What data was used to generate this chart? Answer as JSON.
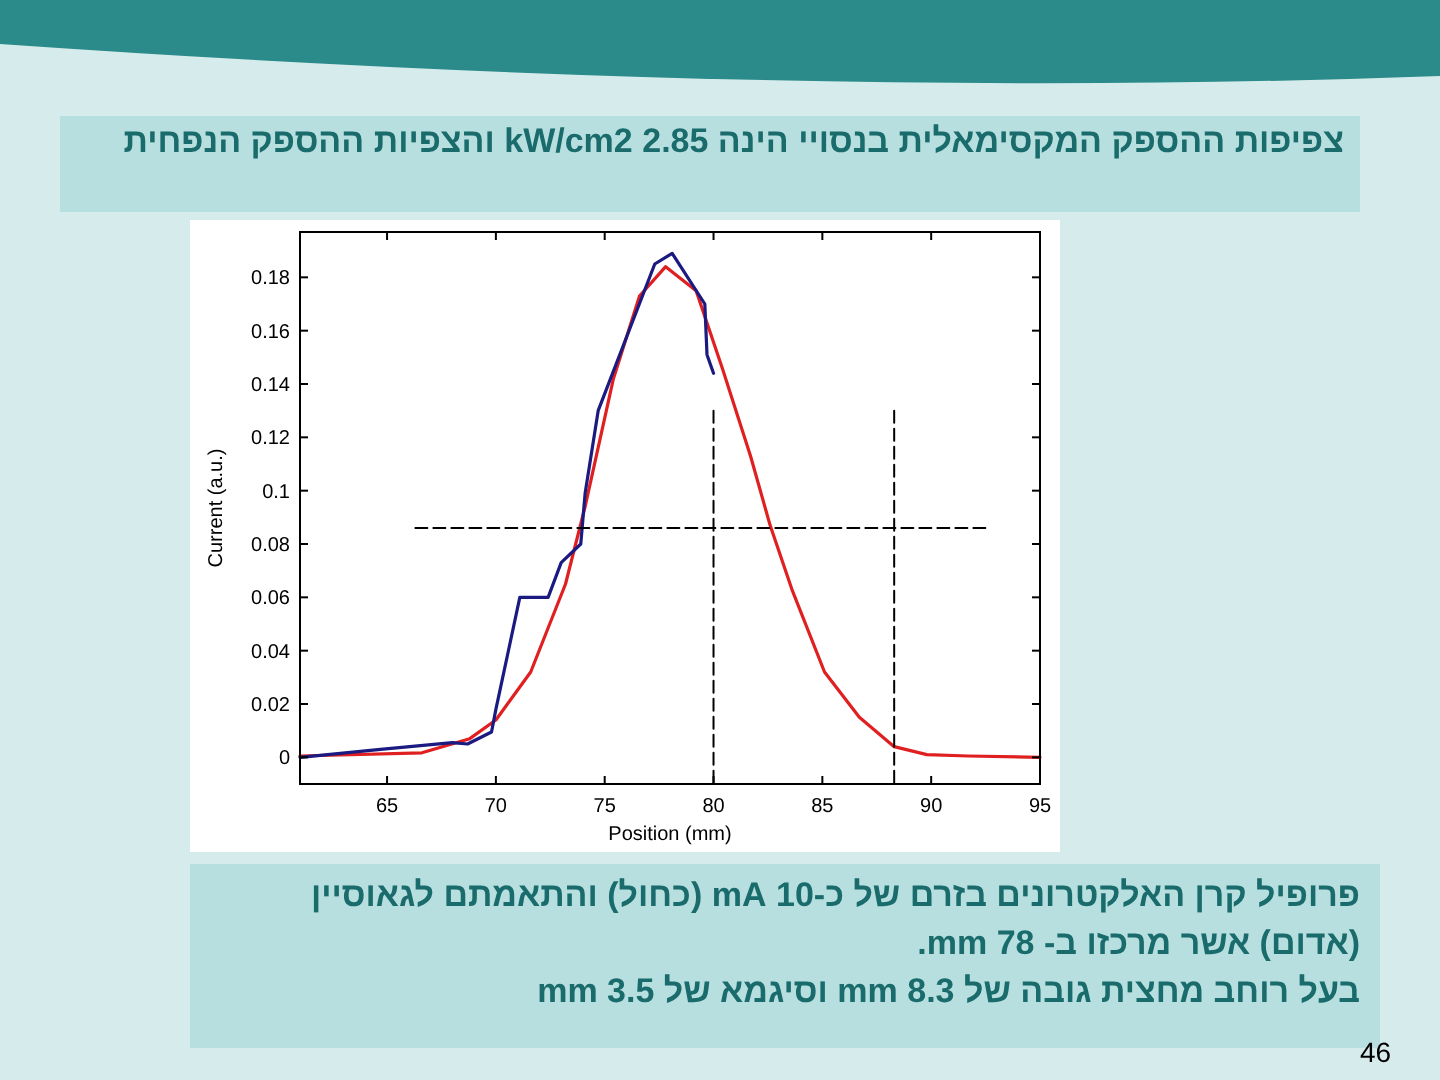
{
  "chart_data": {
    "type": "line",
    "title": "צפיפות ההספק המקסימאלית  בנסויי הינה 2.85 kW/cm2 והצפיות ההספק הנפחית",
    "xlabel": "Position (mm)",
    "ylabel": "Current (a.u.)",
    "annotations": [
      "פרופיל קרן האלקטרונים בזרם של כ-10 mA (כחול) והתאמתם לגאוסיין (אדום) אשר מרכזו ב- 78 mm.",
      "בעל רוחב מחצית גובה של 8.3 mm וסיגמא של 3.5 mm",
      "46"
    ],
    "xlim": [
      61,
      95
    ],
    "ylim": [
      -0.01,
      0.197
    ],
    "xticks": [
      65,
      70,
      75,
      80,
      85,
      90,
      95
    ],
    "yticks": [
      0,
      0.02,
      0.04,
      0.06,
      0.08,
      0.1,
      0.12,
      0.14,
      0.16,
      0.18
    ],
    "series": [
      {
        "color": "#e02020",
        "x": [
          61,
          66.6,
          68.8,
          70,
          71.6,
          73.2,
          74.1,
          75.4,
          76.6,
          77.8,
          79.2,
          80.4,
          81.7,
          82.6,
          83.6,
          85.1,
          86.7,
          88.3,
          89.8,
          91.7,
          95
        ],
        "values": [
          0.0005,
          0.0017,
          0.007,
          0.014,
          0.032,
          0.065,
          0.094,
          0.142,
          0.173,
          0.184,
          0.175,
          0.146,
          0.113,
          0.087,
          0.063,
          0.032,
          0.015,
          0.004,
          0.001,
          0.0005,
          0
        ]
      },
      {
        "color": "#1a1a80",
        "x": [
          61,
          64.7,
          68,
          68.7,
          69.8,
          70,
          71.1,
          72.4,
          73,
          73.9,
          74.1,
          74.7,
          77.3,
          78.1,
          79.6,
          79.7,
          80
        ],
        "values": [
          0,
          0.003,
          0.0055,
          0.005,
          0.0095,
          0.018,
          0.06,
          0.06,
          0.073,
          0.08,
          0.099,
          0.13,
          0.185,
          0.189,
          0.17,
          0.151,
          0.144
        ]
      },
      {
        "color": "#000000",
        "line_style": "dashed",
        "x": [
          66.3,
          92.6
        ],
        "values": [
          0.086,
          0.086
        ]
      },
      {
        "color": "#000000",
        "line_style": "dashed",
        "x": [
          80,
          80
        ],
        "values": [
          0.13,
          -0.01
        ]
      },
      {
        "color": "#000000",
        "line_style": "dashed",
        "x": [
          88.3,
          88.3
        ],
        "values": [
          0.13,
          -0.01
        ]
      }
    ]
  }
}
